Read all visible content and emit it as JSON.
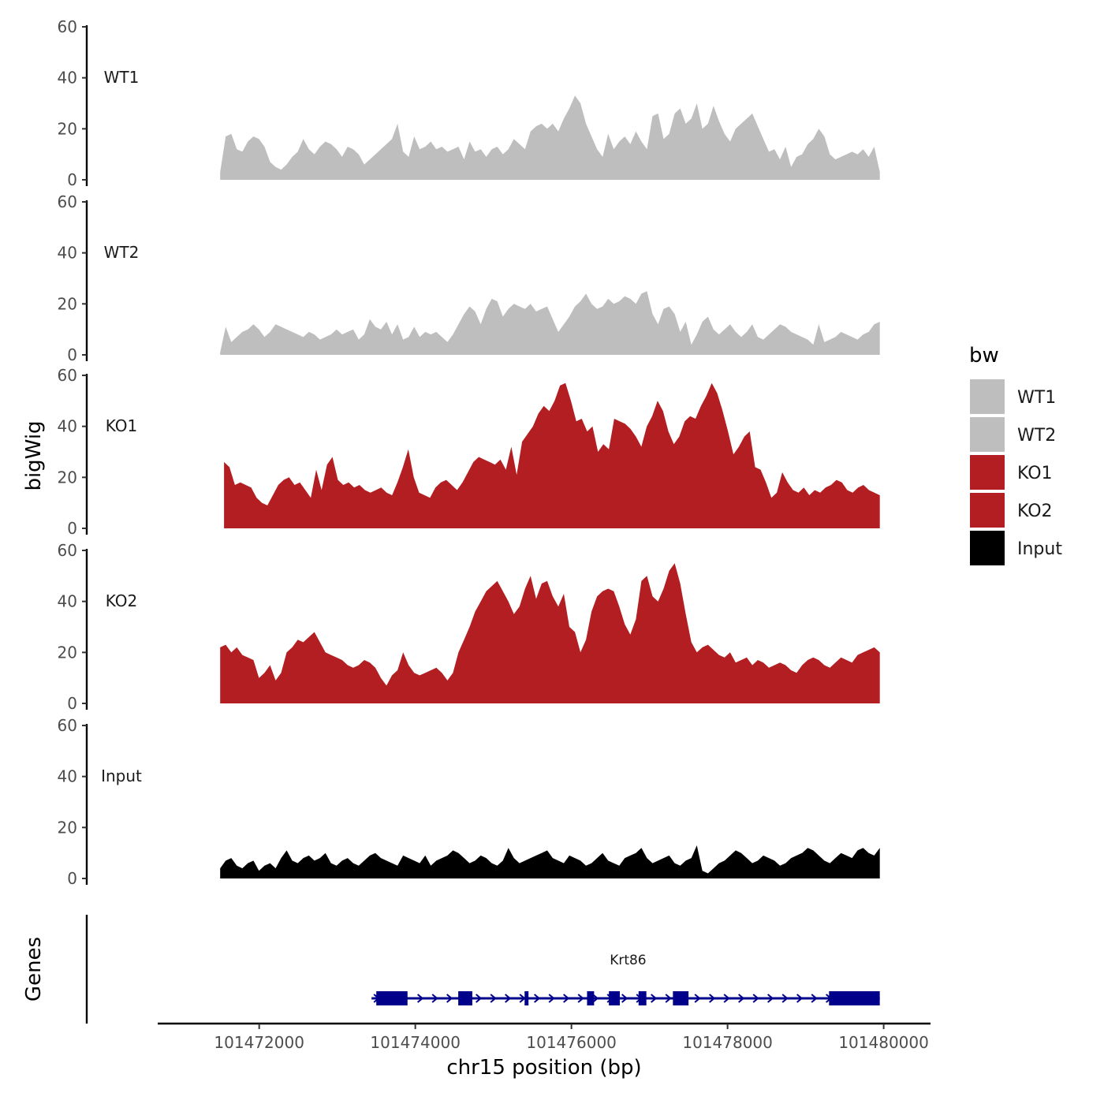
{
  "chart_data": {
    "type": "area",
    "title": "",
    "xlabel": "chr15 position (bp)",
    "ylabel": "bigWig",
    "gene_panel_label": "Genes",
    "xlim": [
      101470700,
      101480600
    ],
    "x_ticks": [
      101472000,
      101474000,
      101476000,
      101478000,
      101480000
    ],
    "x_tick_labels": [
      "101472000",
      "101474000",
      "101476000",
      "101478000",
      "101480000"
    ],
    "ylim": [
      0,
      60
    ],
    "y_ticks": [
      0,
      20,
      40,
      60
    ],
    "y_tick_labels": [
      "0",
      "20",
      "40",
      "60"
    ],
    "legend": {
      "title": "bw",
      "position": "right",
      "entries": [
        {
          "label": "WT1",
          "color": "#bebebe"
        },
        {
          "label": "WT2",
          "color": "#bebebe"
        },
        {
          "label": "KO1",
          "color": "#b21e21"
        },
        {
          "label": "KO2",
          "color": "#b21e21"
        },
        {
          "label": "Input",
          "color": "#000000"
        }
      ]
    },
    "series": [
      {
        "name": "WT1",
        "color": "#bebebe",
        "x_start": 101471500,
        "x_end": 101479950,
        "values": [
          3,
          17,
          18,
          12,
          11,
          15,
          17,
          16,
          13,
          7,
          5,
          4,
          6,
          9,
          11,
          16,
          12,
          10,
          13,
          15,
          14,
          12,
          9,
          13,
          12,
          10,
          6,
          8,
          10,
          12,
          14,
          16,
          22,
          11,
          9,
          17,
          12,
          13,
          15,
          12,
          13,
          11,
          12,
          13,
          8,
          15,
          11,
          12,
          9,
          12,
          13,
          10,
          12,
          16,
          14,
          12,
          19,
          21,
          22,
          20,
          22,
          19,
          24,
          28,
          33,
          30,
          22,
          17,
          12,
          9,
          18,
          12,
          15,
          17,
          14,
          19,
          15,
          12,
          25,
          26,
          16,
          18,
          26,
          28,
          22,
          24,
          30,
          20,
          22,
          29,
          23,
          18,
          15,
          20,
          22,
          24,
          26,
          21,
          16,
          11,
          12,
          8,
          13,
          5,
          9,
          10,
          14,
          16,
          20,
          17,
          10,
          8,
          9,
          10,
          11,
          10,
          12,
          9,
          13,
          3
        ]
      },
      {
        "name": "WT2",
        "color": "#bebebe",
        "x_start": 101471500,
        "x_end": 101479950,
        "values": [
          1,
          11,
          5,
          7,
          9,
          10,
          12,
          10,
          7,
          9,
          12,
          11,
          10,
          9,
          8,
          7,
          9,
          8,
          6,
          7,
          8,
          10,
          8,
          9,
          10,
          6,
          8,
          14,
          11,
          10,
          13,
          8,
          12,
          6,
          7,
          11,
          7,
          9,
          8,
          9,
          7,
          5,
          8,
          12,
          16,
          19,
          17,
          12,
          18,
          22,
          21,
          15,
          18,
          20,
          19,
          18,
          20,
          17,
          18,
          19,
          14,
          9,
          12,
          15,
          19,
          21,
          24,
          20,
          18,
          19,
          22,
          20,
          21,
          23,
          22,
          20,
          24,
          25,
          16,
          12,
          18,
          19,
          16,
          9,
          13,
          4,
          8,
          13,
          15,
          10,
          8,
          10,
          12,
          9,
          7,
          9,
          12,
          7,
          6,
          8,
          10,
          12,
          11,
          9,
          8,
          7,
          6,
          4,
          12,
          5,
          6,
          7,
          9,
          8,
          7,
          6,
          8,
          9,
          12,
          13
        ]
      },
      {
        "name": "KO1",
        "color": "#b21e21",
        "x_start": 101471550,
        "x_end": 101479950,
        "values": [
          26,
          24,
          17,
          18,
          17,
          16,
          12,
          10,
          9,
          13,
          17,
          19,
          20,
          17,
          18,
          15,
          12,
          23,
          15,
          25,
          28,
          19,
          17,
          18,
          16,
          17,
          15,
          14,
          15,
          16,
          14,
          13,
          18,
          24,
          31,
          20,
          14,
          13,
          12,
          16,
          18,
          19,
          17,
          15,
          18,
          22,
          26,
          28,
          27,
          26,
          25,
          27,
          23,
          32,
          21,
          34,
          37,
          40,
          45,
          48,
          46,
          50,
          56,
          57,
          50,
          42,
          43,
          38,
          40,
          30,
          33,
          31,
          43,
          42,
          41,
          39,
          36,
          32,
          40,
          44,
          50,
          46,
          38,
          33,
          36,
          42,
          44,
          43,
          48,
          52,
          57,
          53,
          46,
          38,
          29,
          32,
          36,
          38,
          24,
          23,
          18,
          12,
          14,
          22,
          18,
          15,
          14,
          16,
          13,
          15,
          14,
          16,
          17,
          19,
          18,
          15,
          14,
          16,
          17,
          15,
          14,
          13
        ]
      },
      {
        "name": "KO2",
        "color": "#b21e21",
        "x_start": 101471500,
        "x_end": 101479950,
        "values": [
          22,
          23,
          20,
          22,
          19,
          18,
          17,
          10,
          12,
          15,
          9,
          12,
          20,
          22,
          25,
          24,
          26,
          28,
          24,
          20,
          19,
          18,
          17,
          15,
          14,
          15,
          17,
          16,
          14,
          10,
          7,
          11,
          13,
          20,
          15,
          12,
          11,
          12,
          13,
          14,
          12,
          9,
          12,
          20,
          25,
          30,
          36,
          40,
          44,
          46,
          48,
          44,
          40,
          35,
          38,
          45,
          50,
          41,
          47,
          48,
          42,
          38,
          43,
          30,
          28,
          20,
          25,
          36,
          42,
          44,
          45,
          44,
          38,
          31,
          27,
          33,
          48,
          50,
          42,
          40,
          45,
          52,
          55,
          47,
          35,
          24,
          20,
          22,
          23,
          21,
          19,
          18,
          20,
          16,
          17,
          18,
          15,
          17,
          16,
          14,
          15,
          16,
          15,
          13,
          12,
          15,
          17,
          18,
          17,
          15,
          14,
          16,
          18,
          17,
          16,
          19,
          20,
          21,
          22,
          20
        ]
      },
      {
        "name": "Input",
        "color": "#000000",
        "x_start": 101471500,
        "x_end": 101479950,
        "values": [
          4,
          7,
          8,
          5,
          4,
          6,
          7,
          3,
          5,
          6,
          4,
          8,
          11,
          7,
          6,
          8,
          9,
          7,
          8,
          10,
          6,
          5,
          7,
          8,
          6,
          5,
          7,
          9,
          10,
          8,
          7,
          6,
          5,
          9,
          8,
          7,
          6,
          9,
          5,
          7,
          8,
          9,
          11,
          10,
          8,
          6,
          7,
          9,
          8,
          6,
          5,
          7,
          12,
          8,
          6,
          7,
          8,
          9,
          10,
          11,
          8,
          7,
          6,
          9,
          8,
          7,
          5,
          6,
          8,
          10,
          7,
          6,
          5,
          8,
          9,
          10,
          12,
          8,
          6,
          7,
          8,
          9,
          6,
          5,
          7,
          8,
          13,
          3,
          2,
          4,
          6,
          7,
          9,
          11,
          10,
          8,
          6,
          7,
          9,
          8,
          7,
          5,
          6,
          8,
          9,
          10,
          12,
          11,
          9,
          7,
          6,
          8,
          10,
          9,
          8,
          11,
          12,
          10,
          9,
          12
        ]
      }
    ],
    "genes": [
      {
        "name": "Krt86",
        "strand": "+",
        "start": 101473500,
        "end": 101479950,
        "exons": [
          [
            101473500,
            101473900
          ],
          [
            101474550,
            101474730
          ],
          [
            101475400,
            101475450
          ],
          [
            101476200,
            101476290
          ],
          [
            101476480,
            101476620
          ],
          [
            101476860,
            101476960
          ],
          [
            101477300,
            101477500
          ],
          [
            101479300,
            101479950
          ]
        ]
      }
    ]
  }
}
